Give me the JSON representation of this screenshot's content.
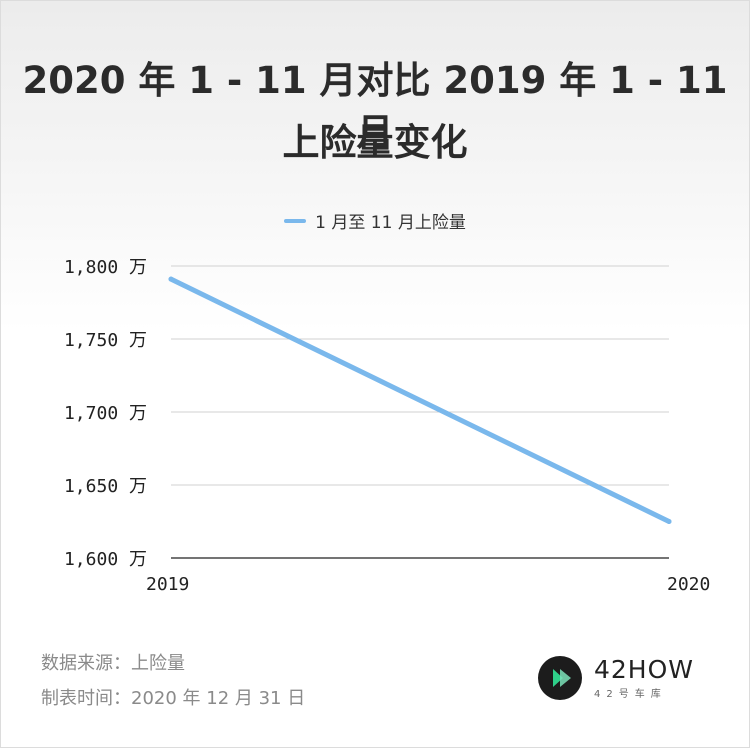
{
  "chart_data": {
    "type": "line",
    "title_line1": "2020 年 1 - 11 月对比 2019 年 1 - 11 月",
    "title_line2": "上险量变化",
    "categories": [
      "2019",
      "2020"
    ],
    "series": [
      {
        "name": "1  月至  11  月上险量",
        "values": [
          1791,
          1625
        ],
        "color": "#7ab8ec"
      }
    ],
    "ylim": [
      1600,
      1800
    ],
    "y_ticks": [
      {
        "value": 1800,
        "label": "1,800 万"
      },
      {
        "value": 1750,
        "label": "1,750 万"
      },
      {
        "value": 1700,
        "label": "1,700 万"
      },
      {
        "value": 1650,
        "label": "1,650 万"
      },
      {
        "value": 1600,
        "label": "1,600 万"
      }
    ],
    "grid": true,
    "legend_position": "top-center"
  },
  "footer": {
    "source": "数据来源：上险量",
    "date": "制表时间：2020 年 12 月 31 日"
  },
  "logo": {
    "name": "42HOW",
    "subtitle": "42号车库",
    "mark_color": "#1c1c1c",
    "accent_colors": [
      "#2fd08a",
      "#7be2b8"
    ]
  }
}
